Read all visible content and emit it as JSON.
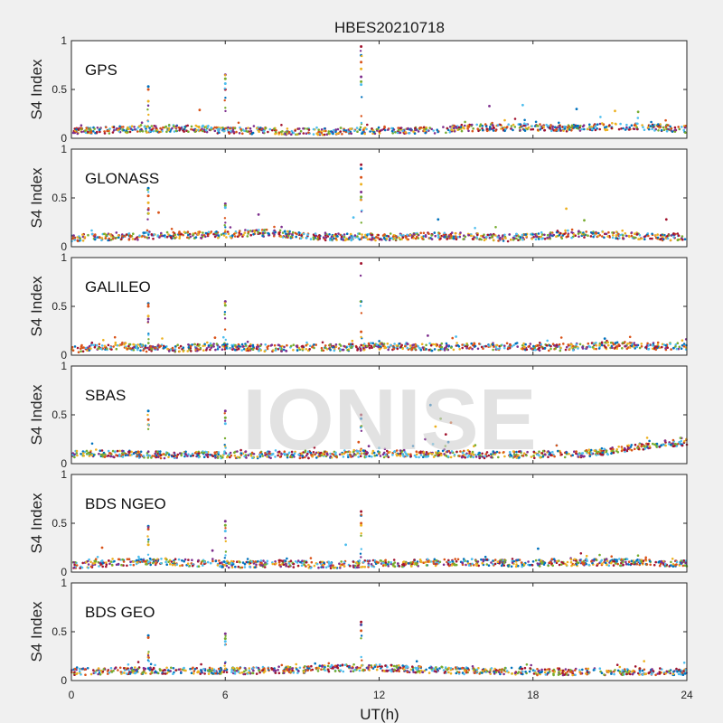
{
  "chart_data": {
    "type": "scatter",
    "title": "HBES20210718",
    "xlabel": "UT(h)",
    "ylabel": "S4 Index",
    "xlim": [
      0,
      24
    ],
    "ylim": [
      0,
      1
    ],
    "xticks": [
      "0",
      "6",
      "12",
      "18",
      "24"
    ],
    "yticks": [
      "0",
      "0.5",
      "1"
    ],
    "watermark": "IONISE",
    "colors": [
      "#0072bd",
      "#d95319",
      "#edb120",
      "#7e2f8e",
      "#77ac30",
      "#4dbeee",
      "#a2142f"
    ],
    "grid": false,
    "panels": [
      {
        "name": "GPS",
        "baseline": [
          0.08,
          0.08,
          0.09,
          0.09,
          0.1,
          0.1,
          0.08,
          0.08,
          0.07,
          0.07,
          0.07,
          0.08,
          0.08,
          0.08,
          0.08,
          0.1,
          0.11,
          0.11,
          0.11,
          0.1,
          0.11,
          0.12,
          0.12,
          0.11,
          0.09
        ],
        "spikes": [
          {
            "x": 3.0,
            "y": [
              0.53,
              0.5,
              0.38
            ]
          },
          {
            "x": 6.0,
            "y": [
              0.65,
              0.61,
              0.56,
              0.5
            ]
          },
          {
            "x": 11.3,
            "y": [
              0.94,
              0.85,
              0.78,
              0.71,
              0.63,
              0.58,
              0.55
            ]
          }
        ],
        "isolated": [
          {
            "x": 5.0,
            "y": 0.29
          },
          {
            "x": 16.3,
            "y": 0.33
          },
          {
            "x": 17.6,
            "y": 0.34
          },
          {
            "x": 19.7,
            "y": 0.3
          },
          {
            "x": 21.2,
            "y": 0.28
          },
          {
            "x": 22.1,
            "y": 0.27
          }
        ]
      },
      {
        "name": "GLONASS",
        "baseline": [
          0.09,
          0.1,
          0.1,
          0.11,
          0.12,
          0.12,
          0.12,
          0.14,
          0.14,
          0.11,
          0.1,
          0.1,
          0.1,
          0.1,
          0.11,
          0.11,
          0.1,
          0.09,
          0.11,
          0.12,
          0.13,
          0.12,
          0.11,
          0.1,
          0.1
        ],
        "spikes": [
          {
            "x": 3.0,
            "y": [
              0.6,
              0.52,
              0.45,
              0.38,
              0.34
            ]
          },
          {
            "x": 6.0,
            "y": [
              0.44,
              0.42,
              0.4
            ]
          },
          {
            "x": 11.3,
            "y": [
              0.84,
              0.8,
              0.71,
              0.64,
              0.56,
              0.51
            ]
          }
        ],
        "isolated": [
          {
            "x": 3.4,
            "y": 0.35
          },
          {
            "x": 7.3,
            "y": 0.33
          },
          {
            "x": 11.0,
            "y": 0.3
          },
          {
            "x": 14.3,
            "y": 0.28
          },
          {
            "x": 19.3,
            "y": 0.39
          },
          {
            "x": 20.0,
            "y": 0.27
          },
          {
            "x": 23.2,
            "y": 0.28
          }
        ]
      },
      {
        "name": "GALILEO",
        "baseline": [
          0.06,
          0.08,
          0.1,
          0.07,
          0.07,
          0.08,
          0.09,
          0.08,
          0.07,
          0.08,
          0.08,
          0.08,
          0.09,
          0.09,
          0.08,
          0.09,
          0.09,
          0.09,
          0.08,
          0.08,
          0.09,
          0.1,
          0.1,
          0.09,
          0.09
        ],
        "spikes": [
          {
            "x": 3.0,
            "y": [
              0.53,
              0.5,
              0.4,
              0.37
            ]
          },
          {
            "x": 6.0,
            "y": [
              0.55,
              0.51
            ]
          },
          {
            "x": 11.3,
            "y": [
              0.94,
              0.55,
              0.24
            ]
          }
        ],
        "isolated": [
          {
            "x": 5.6,
            "y": 0.18
          },
          {
            "x": 13.9,
            "y": 0.2
          },
          {
            "x": 15.0,
            "y": 0.19
          },
          {
            "x": 20.8,
            "y": 0.17
          }
        ]
      },
      {
        "name": "SBAS",
        "baseline": [
          0.1,
          0.1,
          0.1,
          0.09,
          0.09,
          0.09,
          0.09,
          0.09,
          0.09,
          0.09,
          0.09,
          0.1,
          0.1,
          0.1,
          0.1,
          0.1,
          0.09,
          0.09,
          0.09,
          0.1,
          0.1,
          0.13,
          0.17,
          0.2,
          0.22
        ],
        "spikes": [
          {
            "x": 3.0,
            "y": [
              0.54,
              0.45,
              0.4
            ]
          },
          {
            "x": 6.0,
            "y": [
              0.54,
              0.47,
              0.41
            ]
          },
          {
            "x": 11.3,
            "y": [
              0.5,
              0.46,
              0.38
            ]
          }
        ],
        "isolated": [
          {
            "x": 11.2,
            "y": 0.22
          },
          {
            "x": 11.6,
            "y": 0.18
          },
          {
            "x": 12.0,
            "y": 0.16
          },
          {
            "x": 14.0,
            "y": 0.6
          },
          {
            "x": 14.2,
            "y": 0.38
          },
          {
            "x": 14.4,
            "y": 0.46
          },
          {
            "x": 14.6,
            "y": 0.3
          },
          {
            "x": 14.8,
            "y": 0.42
          },
          {
            "x": 13.8,
            "y": 0.25
          },
          {
            "x": 14.1,
            "y": 0.2
          },
          {
            "x": 14.7,
            "y": 0.22
          }
        ]
      },
      {
        "name": "BDS NGEO",
        "baseline": [
          0.07,
          0.08,
          0.1,
          0.11,
          0.1,
          0.09,
          0.08,
          0.08,
          0.09,
          0.08,
          0.07,
          0.08,
          0.09,
          0.09,
          0.1,
          0.1,
          0.1,
          0.09,
          0.09,
          0.1,
          0.1,
          0.1,
          0.1,
          0.09,
          0.09
        ],
        "spikes": [
          {
            "x": 3.0,
            "y": [
              0.47,
              0.44,
              0.28
            ]
          },
          {
            "x": 6.0,
            "y": [
              0.52,
              0.48,
              0.42
            ]
          },
          {
            "x": 11.3,
            "y": [
              0.62,
              0.58,
              0.5,
              0.48
            ]
          }
        ],
        "isolated": [
          {
            "x": 1.2,
            "y": 0.25
          },
          {
            "x": 5.5,
            "y": 0.22
          },
          {
            "x": 10.7,
            "y": 0.28
          },
          {
            "x": 18.2,
            "y": 0.24
          }
        ]
      },
      {
        "name": "BDS GEO",
        "baseline": [
          0.09,
          0.09,
          0.1,
          0.1,
          0.1,
          0.1,
          0.1,
          0.1,
          0.11,
          0.11,
          0.12,
          0.13,
          0.13,
          0.12,
          0.11,
          0.1,
          0.1,
          0.1,
          0.09,
          0.09,
          0.09,
          0.09,
          0.09,
          0.09,
          0.09
        ],
        "spikes": [
          {
            "x": 3.0,
            "y": [
              0.46,
              0.44,
              0.24
            ]
          },
          {
            "x": 6.0,
            "y": [
              0.48,
              0.43,
              0.4
            ]
          },
          {
            "x": 11.3,
            "y": [
              0.6,
              0.57,
              0.51
            ]
          }
        ],
        "isolated": []
      }
    ]
  }
}
